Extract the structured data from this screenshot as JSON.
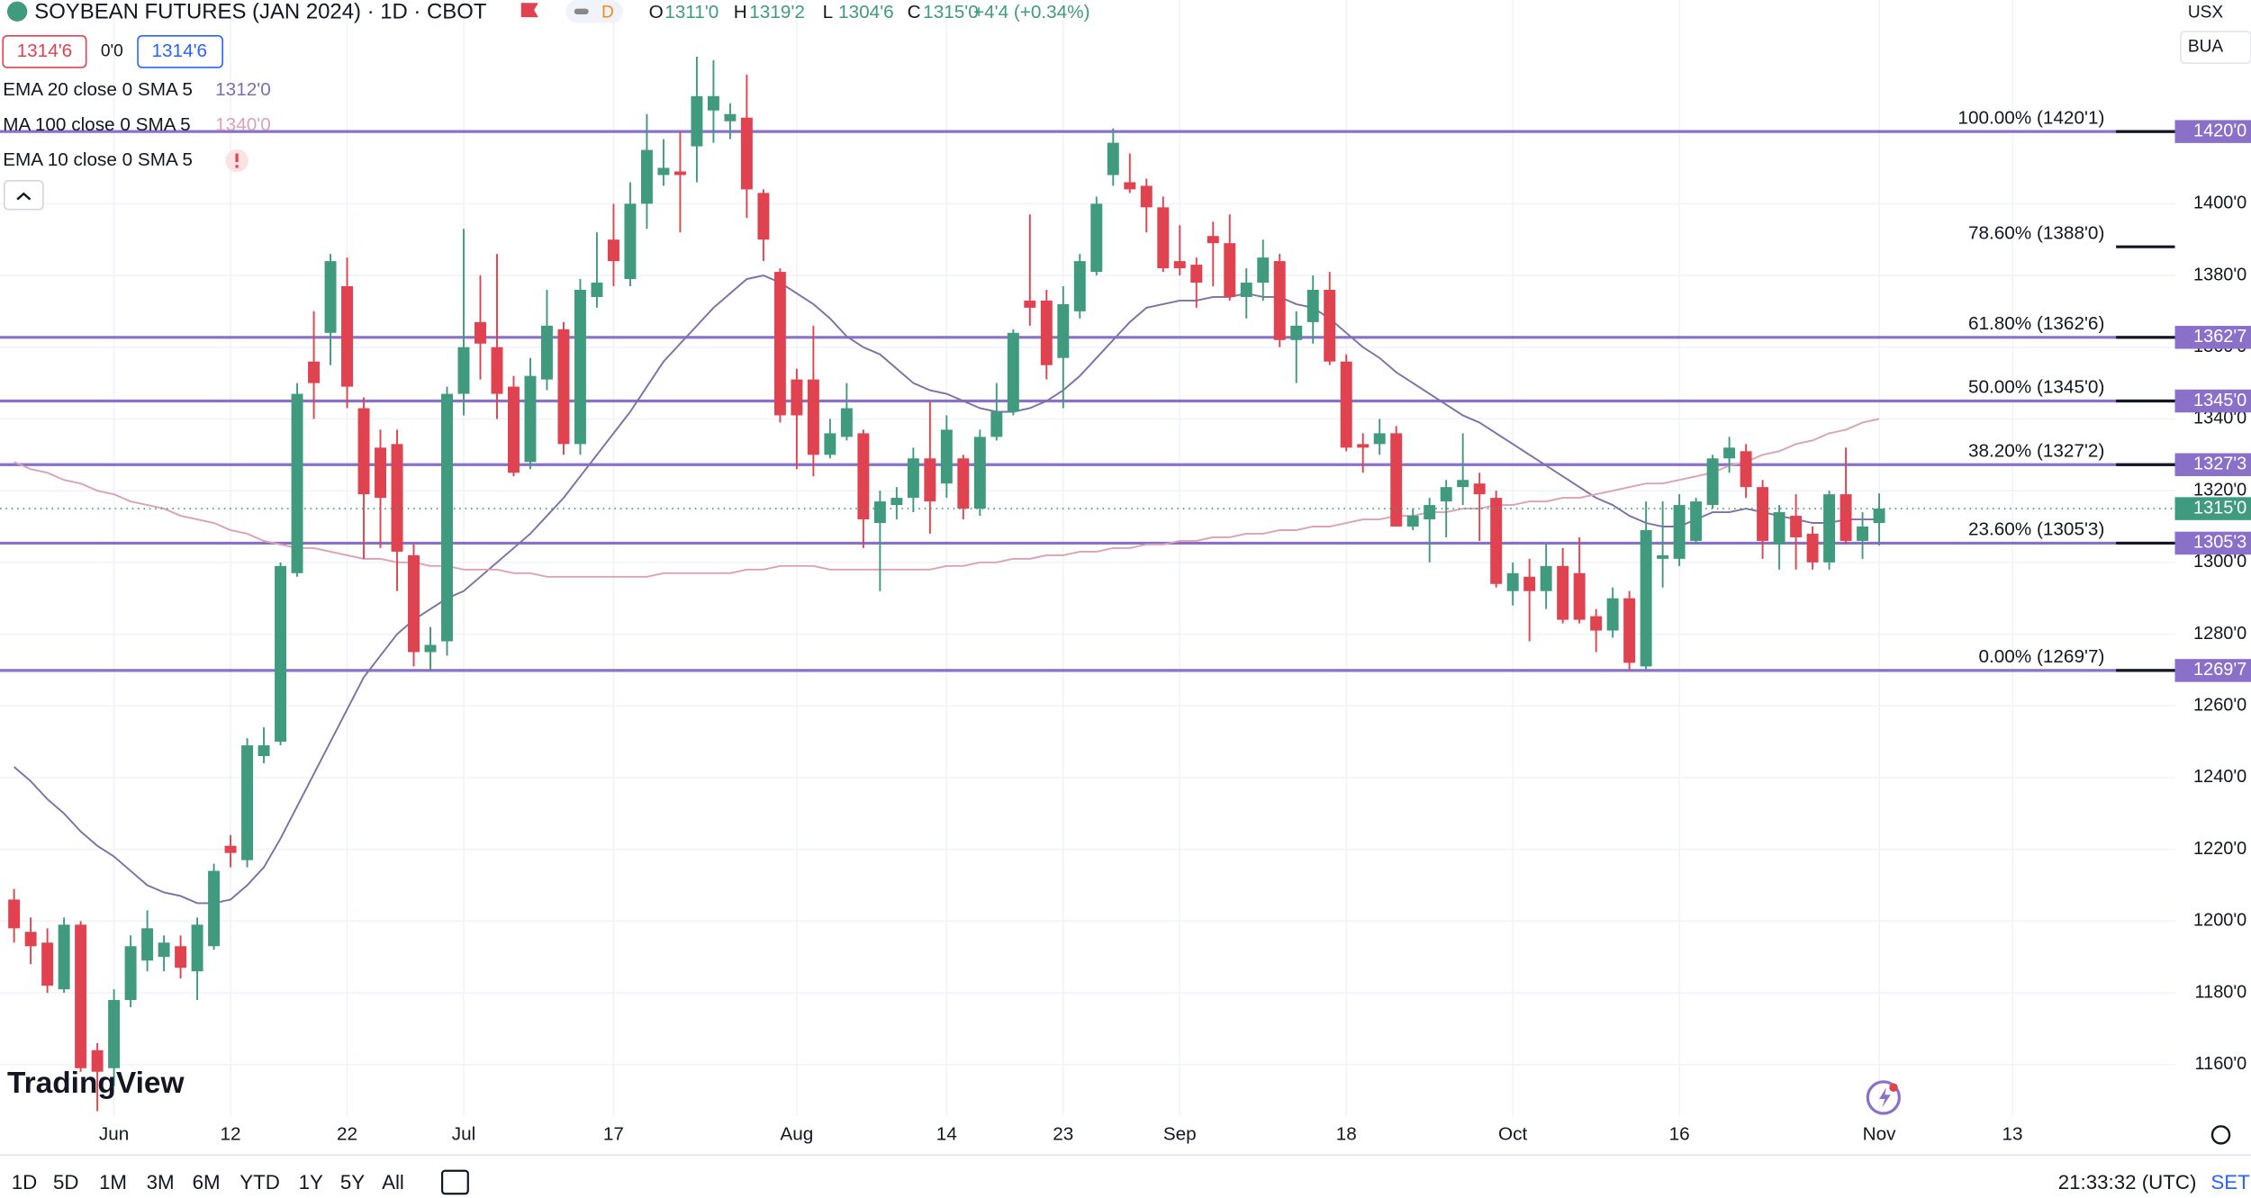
{
  "header": {
    "symbol": "SOYBEAN FUTURES (JAN 2024) · 1D · CBOT",
    "interval": "D",
    "ohlc": [
      {
        "key": "O",
        "value": "1311'0"
      },
      {
        "key": "H",
        "value": "1319'2"
      },
      {
        "key": "L",
        "value": "1304'6"
      },
      {
        "key": "C",
        "value": "1315'0"
      }
    ],
    "change": "+4'4 (+0.34%)",
    "sell": "1314'6",
    "spread": "0'0",
    "buy": "1314'6",
    "currency": "USX",
    "unit": "BUA"
  },
  "chart_data": {
    "type": "candlestick",
    "categories": [
      null,
      null,
      null,
      null,
      null,
      null,
      "Jun",
      null,
      null,
      null,
      null,
      null,
      null,
      "12",
      null,
      null,
      null,
      null,
      null,
      null,
      "22",
      null,
      null,
      null,
      null,
      null,
      null,
      "Jul",
      null,
      null,
      null,
      null,
      null,
      null,
      null,
      null,
      "17",
      null,
      null,
      null,
      null,
      null,
      null,
      null,
      null,
      null,
      null,
      "Aug",
      null,
      null,
      null,
      null,
      null,
      null,
      null,
      null,
      "14",
      null,
      null,
      null,
      null,
      null,
      null,
      "23",
      null,
      null,
      null,
      null,
      null,
      null,
      "Sep",
      null,
      null,
      null,
      null,
      null,
      null,
      null,
      null,
      null,
      "18",
      null,
      null,
      null,
      null,
      null,
      null,
      null,
      null,
      null,
      "Oct",
      null,
      null,
      null,
      null,
      null,
      null,
      null,
      null,
      null,
      "16",
      null,
      null,
      null,
      null,
      null,
      null,
      null,
      null,
      null,
      null,
      null,
      "Nov",
      null,
      null,
      null,
      null,
      null,
      null,
      null,
      "13",
      null,
      null,
      null,
      null,
      null,
      null,
      null,
      null,
      null
    ],
    "open": [
      1206,
      1197,
      1194,
      1181,
      1199,
      1164,
      1159,
      1178,
      1189,
      1190,
      1193,
      1186,
      1193,
      1221,
      1217,
      1246,
      1250,
      1297,
      1356,
      1364,
      1377,
      1343,
      1332,
      1333,
      1302,
      1275,
      1278,
      1347,
      1367,
      1360,
      1349,
      1328,
      1351,
      1365,
      1333,
      1374,
      1390,
      1379,
      1400,
      1408,
      1409,
      1416,
      1426,
      1423,
      1424,
      1403,
      1381,
      1351,
      1351,
      1330,
      1335,
      1336,
      1311,
      1316,
      1318,
      1329,
      1322,
      1329,
      1315,
      1335,
      1342,
      1373,
      1373,
      1357,
      1370,
      1381,
      1408,
      1406,
      1405,
      1399,
      1384,
      1383,
      1391,
      1389,
      1374,
      1378,
      1384,
      1362,
      1367,
      1376,
      1356,
      1333,
      1333,
      1336,
      1310,
      1312,
      1317,
      1321,
      1322,
      1318,
      1292,
      1296,
      1292,
      1299,
      1297,
      1285,
      1281,
      1290,
      1271,
      1301,
      1301,
      1306,
      1316,
      1329,
      1331,
      1321,
      1305,
      1313,
      1308,
      1300,
      1319,
      1306,
      1311,
      null,
      null,
      null,
      null,
      null,
      null,
      null,
      null,
      null,
      null,
      null,
      null,
      null,
      null,
      null,
      null,
      null
    ],
    "high": [
      1209,
      1201,
      1198,
      1201,
      1200,
      1166,
      1181,
      1196,
      1203,
      1196,
      1196,
      1201,
      1216,
      1224,
      1251,
      1254,
      1300,
      1350,
      1370,
      1386,
      1385,
      1346,
      1337,
      1337,
      1305,
      1282,
      1349,
      1393,
      1380,
      1386,
      1352,
      1357,
      1376,
      1367,
      1379,
      1392,
      1400,
      1406,
      1425,
      1418,
      1420,
      1441,
      1440,
      1428,
      1436,
      1404,
      1382,
      1354,
      1366,
      1340,
      1350,
      1337,
      1320,
      1321,
      1332,
      1345,
      1341,
      1330,
      1337,
      1350,
      1365,
      1397,
      1376,
      1377,
      1386,
      1402,
      1421,
      1414,
      1407,
      1402,
      1394,
      1385,
      1395,
      1397,
      1382,
      1390,
      1386,
      1370,
      1380,
      1381,
      1358,
      1336,
      1340,
      1338,
      1315,
      1318,
      1323,
      1336,
      1325,
      1320,
      1300,
      1301,
      1305,
      1304,
      1307,
      1287,
      1293,
      1292,
      1317,
      1317,
      1319,
      1318,
      1330,
      1335,
      1333,
      1323,
      1316,
      1319,
      1310,
      1320,
      1332,
      1314,
      1319.25,
      null,
      null,
      null,
      null,
      null,
      null,
      null,
      null,
      null,
      null,
      null,
      null,
      null,
      null,
      null,
      null,
      null
    ],
    "low": [
      1194,
      1188,
      1180,
      1180,
      1158,
      1147,
      1154,
      1176,
      1186,
      1186,
      1184,
      1178,
      1192,
      1215,
      1215,
      1244,
      1249,
      1296,
      1340,
      1355,
      1343,
      1301,
      1304,
      1292,
      1271,
      1270,
      1274,
      1341,
      1351,
      1340,
      1324,
      1326,
      1348,
      1330,
      1330,
      1371,
      1377,
      1377,
      1393,
      1405,
      1392,
      1406,
      1417,
      1418,
      1396,
      1384,
      1339,
      1326,
      1324,
      1329,
      1334,
      1304,
      1292,
      1312,
      1314,
      1308,
      1318,
      1312,
      1313,
      1334,
      1341,
      1366,
      1351,
      1343,
      1368,
      1380,
      1405,
      1403,
      1392,
      1381,
      1380,
      1371,
      1377,
      1373,
      1368,
      1373,
      1360,
      1350,
      1361,
      1355,
      1331,
      1325,
      1330,
      1310,
      1309,
      1300,
      1307,
      1316,
      1306,
      1293,
      1288,
      1278,
      1287,
      1283,
      1283,
      1275,
      1279,
      1270,
      1270,
      1293,
      1299,
      1305,
      1315,
      1325,
      1318,
      1301,
      1298,
      1298,
      1298,
      1298,
      1305,
      1301,
      1304.75,
      null,
      null,
      null,
      null,
      null,
      null,
      null,
      null,
      null,
      null,
      null,
      null,
      null,
      null,
      null,
      null,
      null
    ],
    "close": [
      1198,
      1193,
      1182,
      1199,
      1159,
      1158,
      1178,
      1193,
      1198,
      1194,
      1187,
      1199,
      1214,
      1219,
      1249,
      1249,
      1299,
      1347,
      1350,
      1384,
      1349,
      1319,
      1318,
      1303,
      1275,
      1277,
      1347,
      1360,
      1361,
      1347,
      1325,
      1352,
      1366,
      1333,
      1376,
      1378,
      1384,
      1400,
      1415,
      1410,
      1408,
      1430,
      1430,
      1425,
      1404,
      1390,
      1341,
      1341,
      1330,
      1336,
      1343,
      1312,
      1317,
      1318,
      1329,
      1317,
      1337,
      1315,
      1335,
      1342,
      1364,
      1371,
      1355,
      1372,
      1384,
      1400,
      1417,
      1404,
      1399,
      1382,
      1382,
      1378,
      1389,
      1374,
      1378,
      1385,
      1362,
      1366,
      1376,
      1356,
      1332,
      1332,
      1336,
      1310,
      1313,
      1316,
      1321,
      1323,
      1319,
      1294,
      1297,
      1292,
      1299,
      1284,
      1284,
      1281,
      1290,
      1272,
      1309,
      1302,
      1316,
      1317,
      1329,
      1332,
      1321,
      1306,
      1314,
      1307,
      1300,
      1319,
      1306,
      1310,
      1315,
      null,
      null,
      null,
      null,
      null,
      null,
      null,
      null,
      null,
      null,
      null,
      null,
      null,
      null,
      null,
      null,
      null
    ],
    "up_color": "#3f9a7e",
    "down_color": "#e0424f",
    "series": [
      {
        "name": "EMA 20 close 0 SMA 5",
        "color": "#7e6fa6",
        "value_label": "1312'0",
        "values": [
          1243,
          1239,
          1234,
          1230,
          1225,
          1221,
          1218,
          1214,
          1210,
          1208,
          1207,
          1205,
          1205,
          1206,
          1210,
          1215,
          1223,
          1232,
          1241,
          1250,
          1259,
          1268,
          1274,
          1280,
          1284,
          1287,
          1290,
          1292,
          1296,
          1300,
          1304,
          1308,
          1313,
          1318,
          1324,
          1330,
          1336,
          1342,
          1349,
          1356,
          1361,
          1366,
          1371,
          1375,
          1379,
          1380,
          1378,
          1375,
          1372,
          1368,
          1363,
          1360,
          1358,
          1354,
          1350,
          1348,
          1347,
          1345,
          1343,
          1342,
          1342,
          1343,
          1345,
          1348,
          1352,
          1357,
          1362,
          1367,
          1371,
          1372,
          1373,
          1373,
          1374,
          1374,
          1375,
          1374,
          1374,
          1372,
          1371,
          1368,
          1364,
          1360,
          1357,
          1353,
          1350,
          1347,
          1344,
          1341,
          1339,
          1336,
          1333,
          1330,
          1327,
          1324,
          1321,
          1318,
          1316,
          1313,
          1311,
          1310,
          1310,
          1312,
          1314,
          1314,
          1315,
          1314,
          1313,
          1312,
          1311,
          1311,
          1312,
          1312,
          1312,
          null,
          null,
          null,
          null,
          null,
          null,
          null,
          null,
          null,
          null,
          null,
          null,
          null,
          null,
          null,
          null,
          null
        ]
      },
      {
        "name": "MA 100 close 0 SMA 5",
        "color": "#d9a3b4",
        "value_label": "1340'0",
        "values": [
          1328,
          1326,
          1325,
          1323,
          1322,
          1320,
          1319,
          1317,
          1316,
          1315,
          1313,
          1312,
          1311,
          1309,
          1308,
          1306,
          1305,
          1304,
          1304,
          1303,
          1302,
          1301,
          1301,
          1300,
          1300,
          1299,
          1299,
          1298,
          1298,
          1298,
          1297,
          1297,
          1296,
          1296,
          1296,
          1296,
          1296,
          1296,
          1296,
          1297,
          1297,
          1297,
          1297,
          1297,
          1298,
          1298,
          1299,
          1299,
          1299,
          1298,
          1298,
          1298,
          1298,
          1298,
          1298,
          1298,
          1299,
          1299,
          1300,
          1300,
          1301,
          1301,
          1302,
          1302,
          1303,
          1303,
          1304,
          1304,
          1305,
          1305,
          1306,
          1306,
          1307,
          1307,
          1308,
          1308,
          1309,
          1309,
          1310,
          1310,
          1311,
          1312,
          1312,
          1313,
          1313,
          1314,
          1314,
          1315,
          1315,
          1316,
          1316,
          1317,
          1317,
          1318,
          1318,
          1319,
          1320,
          1321,
          1322,
          1322,
          1323,
          1324,
          1325,
          1327,
          1328,
          1330,
          1331,
          1333,
          1334,
          1336,
          1337,
          1339,
          1340,
          null,
          null,
          null,
          null,
          null,
          null,
          null,
          null,
          null,
          null,
          null,
          null,
          null,
          null,
          null,
          null,
          null
        ]
      },
      {
        "name": "EMA 10 close 0 SMA 5"
      }
    ],
    "ylim": [
      1145.6,
      1456.8
    ],
    "yticks": [
      {
        "value": 1160,
        "label": "1160'0"
      },
      {
        "value": 1180,
        "label": "1180'0"
      },
      {
        "value": 1200,
        "label": "1200'0"
      },
      {
        "value": 1220,
        "label": "1220'0"
      },
      {
        "value": 1240,
        "label": "1240'0"
      },
      {
        "value": 1260,
        "label": "1260'0"
      },
      {
        "value": 1280,
        "label": "1280'0"
      },
      {
        "value": 1300,
        "label": "1300'0"
      },
      {
        "value": 1320,
        "label": "1320'0"
      },
      {
        "value": 1340,
        "label": "1340'0"
      },
      {
        "value": 1360,
        "label": "1360'0"
      },
      {
        "value": 1380,
        "label": "1380'0"
      },
      {
        "value": 1400,
        "label": "1400'0"
      }
    ],
    "grid": true,
    "fib_color": "#8a70c8",
    "fib_levels": [
      {
        "label": "100.00% (1420'1)",
        "value": 1420.125,
        "badge": "1420'0"
      },
      {
        "label": "78.60% (1388'0)",
        "value": 1388
      },
      {
        "label": "61.80% (1362'6)",
        "value": 1362.75,
        "badge": "1362'7"
      },
      {
        "label": "50.00% (1345'0)",
        "value": 1345,
        "badge": "1345'0"
      },
      {
        "label": "38.20% (1327'2)",
        "value": 1327.25,
        "badge": "1327'3"
      },
      {
        "label": "23.60% (1305'3)",
        "value": 1305.375,
        "badge": "1305'3"
      },
      {
        "label": "0.00% (1269'7)",
        "value": 1269.875,
        "badge": "1269'7"
      }
    ],
    "last": {
      "value": 1315,
      "label": "1315'0",
      "color": "#3f9a7e"
    }
  },
  "toolbar": {
    "ranges": [
      "1D",
      "5D",
      "1M",
      "3M",
      "6M",
      "YTD",
      "1Y",
      "5Y",
      "All"
    ],
    "time": "21:33:32 (UTC)",
    "settings": "SET"
  },
  "watermark": "TradingView"
}
